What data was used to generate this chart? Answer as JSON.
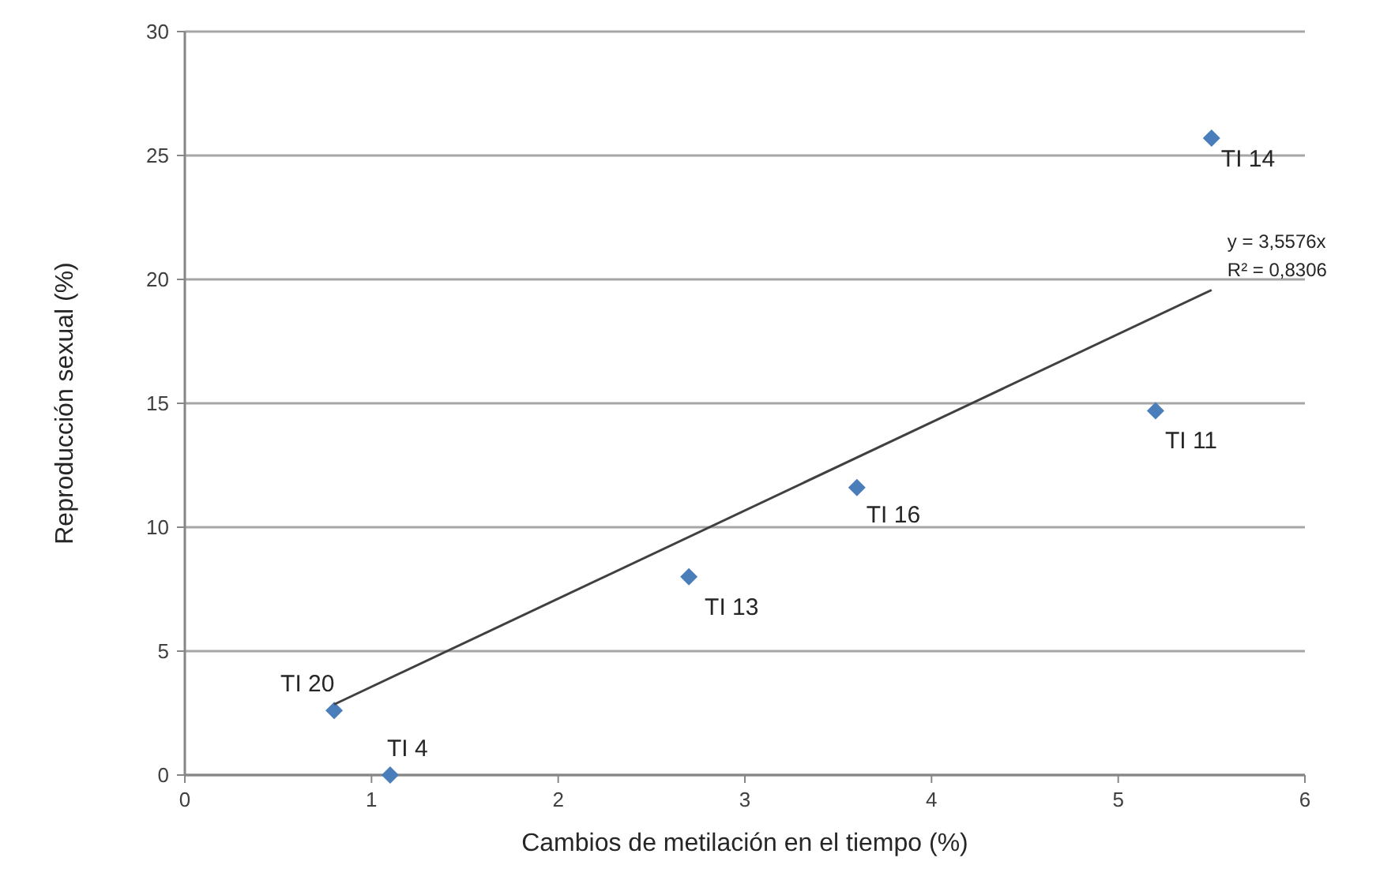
{
  "chart_data": {
    "type": "scatter",
    "xlabel": "Cambios de metilación en el tiempo (%)",
    "ylabel": "Reproducción sexual (%)",
    "xlim": [
      0,
      6
    ],
    "xticks": [
      0,
      1,
      2,
      3,
      4,
      5,
      6
    ],
    "ylim": [
      0,
      30
    ],
    "yticks": [
      0,
      5,
      10,
      15,
      20,
      25,
      30
    ],
    "grid": "y",
    "series": [
      {
        "marker": "diamond",
        "color": "#4a7ebb",
        "x": [
          0.8,
          1.1,
          2.7,
          3.6,
          5.2,
          5.5
        ],
        "values": [
          2.6,
          0,
          8.0,
          11.6,
          14.7,
          25.7
        ]
      },
      {
        "type": "line",
        "color": "#404040",
        "x": [
          0.8,
          5.5
        ],
        "values": [
          2.85,
          19.57
        ]
      }
    ],
    "annotations": [
      {
        "text": "TI 20",
        "x": 0.8,
        "y": 2.6
      },
      {
        "text": "TI 4",
        "x": 1.1,
        "y": 0
      },
      {
        "text": "TI 13",
        "x": 2.7,
        "y": 8.0
      },
      {
        "text": "TI 16",
        "x": 3.6,
        "y": 11.6
      },
      {
        "text": "TI 11",
        "x": 5.2,
        "y": 14.7
      },
      {
        "text": "TI 14",
        "x": 5.5,
        "y": 25.7
      },
      {
        "text": "y = 3,5576x",
        "x": 5.5,
        "y": 19.57
      },
      {
        "text": "R² = 0,8306",
        "x": 5.5,
        "y": 19.57
      }
    ]
  }
}
